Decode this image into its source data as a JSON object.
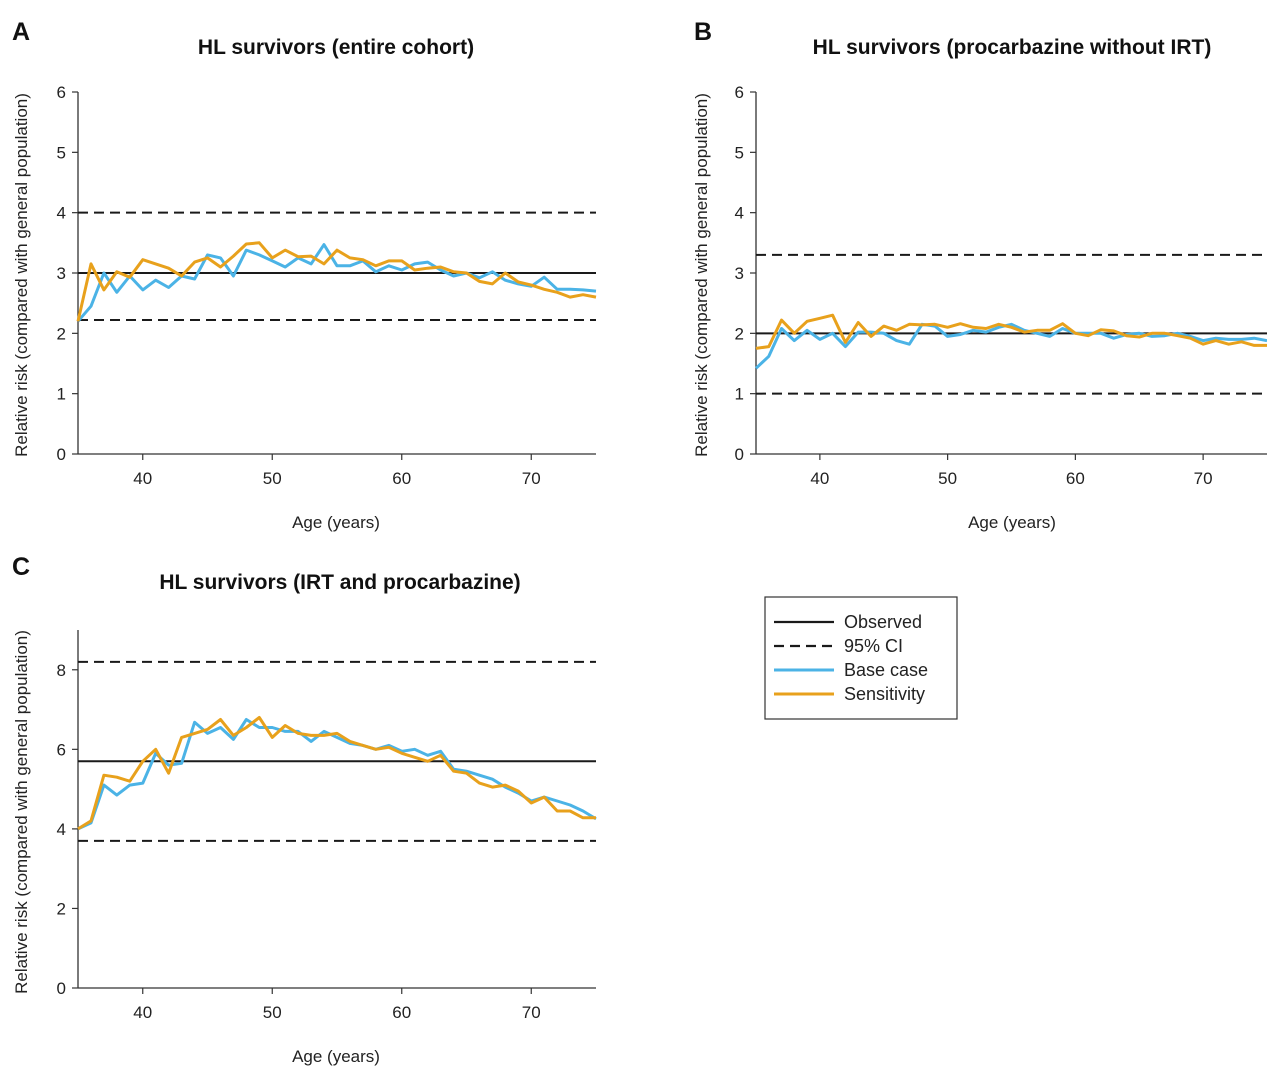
{
  "colors": {
    "observed": "#1a1a1a",
    "ci": "#1a1a1a",
    "base_case": "#4bb3e6",
    "sensitivity": "#e8a11c"
  },
  "legend": {
    "items": [
      {
        "key": "observed",
        "label": "Observed",
        "style": "solid",
        "color": "#1a1a1a"
      },
      {
        "key": "ci",
        "label": "95% CI",
        "style": "dashed",
        "color": "#1a1a1a"
      },
      {
        "key": "base_case",
        "label": "Base case",
        "style": "solid",
        "color": "#4bb3e6"
      },
      {
        "key": "sensitivity",
        "label": "Sensitivity",
        "style": "solid",
        "color": "#e8a11c"
      }
    ]
  },
  "chart_data": [
    {
      "type": "line",
      "panel": "A",
      "title": "HL survivors (entire cohort)",
      "xlabel": "Age (years)",
      "ylabel": "Relative risk (compared with general population)",
      "xlim": [
        35,
        75
      ],
      "ylim": [
        0,
        6
      ],
      "xticks": [
        40,
        50,
        60,
        70
      ],
      "yticks": [
        0,
        1,
        2,
        3,
        4,
        5,
        6
      ],
      "grid": false,
      "observed": 3.0,
      "ci": [
        2.22,
        4.0
      ],
      "x": [
        35,
        36,
        37,
        38,
        39,
        40,
        41,
        42,
        43,
        44,
        45,
        46,
        47,
        48,
        49,
        50,
        51,
        52,
        53,
        54,
        55,
        56,
        57,
        58,
        59,
        60,
        61,
        62,
        63,
        64,
        65,
        66,
        67,
        68,
        69,
        70,
        71,
        72,
        73,
        74,
        75
      ],
      "series": [
        {
          "key": "base_case",
          "values": [
            2.2,
            2.45,
            3.0,
            2.68,
            2.95,
            2.72,
            2.88,
            2.76,
            2.95,
            2.9,
            3.3,
            3.25,
            2.95,
            3.38,
            3.3,
            3.2,
            3.1,
            3.25,
            3.15,
            3.47,
            3.12,
            3.12,
            3.2,
            3.02,
            3.12,
            3.05,
            3.15,
            3.18,
            3.05,
            2.95,
            3.0,
            2.92,
            3.02,
            2.88,
            2.82,
            2.78,
            2.93,
            2.73,
            2.73,
            2.72,
            2.7
          ]
        },
        {
          "key": "sensitivity",
          "values": [
            2.2,
            3.15,
            2.72,
            3.02,
            2.93,
            3.22,
            3.15,
            3.08,
            2.95,
            3.18,
            3.25,
            3.1,
            3.28,
            3.48,
            3.5,
            3.25,
            3.38,
            3.27,
            3.28,
            3.15,
            3.38,
            3.25,
            3.22,
            3.12,
            3.2,
            3.2,
            3.05,
            3.08,
            3.1,
            3.02,
            3.0,
            2.86,
            2.82,
            3.0,
            2.85,
            2.8,
            2.73,
            2.68,
            2.6,
            2.64,
            2.6
          ]
        }
      ]
    },
    {
      "type": "line",
      "panel": "B",
      "title": "HL survivors (procarbazine without IRT)",
      "xlabel": "Age (years)",
      "ylabel": "Relative risk (compared with general population)",
      "xlim": [
        35,
        75
      ],
      "ylim": [
        0,
        6
      ],
      "xticks": [
        40,
        50,
        60,
        70
      ],
      "yticks": [
        0,
        1,
        2,
        3,
        4,
        5,
        6
      ],
      "grid": false,
      "observed": 2.0,
      "ci": [
        1.0,
        3.3
      ],
      "x": [
        35,
        36,
        37,
        38,
        39,
        40,
        41,
        42,
        43,
        44,
        45,
        46,
        47,
        48,
        49,
        50,
        51,
        52,
        53,
        54,
        55,
        56,
        57,
        58,
        59,
        60,
        61,
        62,
        63,
        64,
        65,
        66,
        67,
        68,
        69,
        70,
        71,
        72,
        73,
        74,
        75
      ],
      "series": [
        {
          "key": "base_case",
          "values": [
            1.42,
            1.62,
            2.08,
            1.88,
            2.05,
            1.9,
            2.0,
            1.78,
            2.02,
            2.02,
            2.0,
            1.88,
            1.82,
            2.15,
            2.12,
            1.95,
            1.98,
            2.05,
            2.02,
            2.1,
            2.15,
            2.05,
            2.0,
            1.95,
            2.08,
            2.0,
            2.0,
            2.0,
            1.92,
            1.98,
            2.0,
            1.95,
            1.96,
            2.0,
            1.95,
            1.88,
            1.92,
            1.9,
            1.9,
            1.92,
            1.88
          ]
        },
        {
          "key": "sensitivity",
          "values": [
            1.75,
            1.78,
            2.22,
            2.0,
            2.2,
            2.25,
            2.3,
            1.85,
            2.18,
            1.95,
            2.12,
            2.05,
            2.15,
            2.14,
            2.15,
            2.1,
            2.16,
            2.1,
            2.08,
            2.15,
            2.1,
            2.02,
            2.05,
            2.05,
            2.16,
            2.0,
            1.96,
            2.06,
            2.04,
            1.96,
            1.94,
            2.0,
            2.0,
            1.96,
            1.92,
            1.82,
            1.88,
            1.82,
            1.86,
            1.8,
            1.8
          ]
        }
      ]
    },
    {
      "type": "line",
      "panel": "C",
      "title": "HL survivors (IRT and procarbazine)",
      "xlabel": "Age (years)",
      "ylabel": "Relative risk (compared with general population)",
      "xlim": [
        35,
        75
      ],
      "ylim": [
        0,
        9
      ],
      "xticks": [
        40,
        50,
        60,
        70
      ],
      "yticks": [
        0,
        2,
        4,
        6,
        8
      ],
      "grid": false,
      "observed": 5.7,
      "ci": [
        3.7,
        8.2
      ],
      "x": [
        35,
        36,
        37,
        38,
        39,
        40,
        41,
        42,
        43,
        44,
        45,
        46,
        47,
        48,
        49,
        50,
        51,
        52,
        53,
        54,
        55,
        56,
        57,
        58,
        59,
        60,
        61,
        62,
        63,
        64,
        65,
        66,
        67,
        68,
        69,
        70,
        71,
        72,
        73,
        74,
        75
      ],
      "series": [
        {
          "key": "base_case",
          "values": [
            4.0,
            4.15,
            5.1,
            4.85,
            5.1,
            5.15,
            5.9,
            5.6,
            5.65,
            6.68,
            6.4,
            6.55,
            6.25,
            6.75,
            6.55,
            6.55,
            6.45,
            6.45,
            6.2,
            6.45,
            6.3,
            6.15,
            6.1,
            6.0,
            6.1,
            5.95,
            6.0,
            5.85,
            5.95,
            5.5,
            5.45,
            5.35,
            5.25,
            5.05,
            4.9,
            4.7,
            4.8,
            4.7,
            4.6,
            4.45,
            4.25
          ]
        },
        {
          "key": "sensitivity",
          "values": [
            4.0,
            4.2,
            5.35,
            5.3,
            5.2,
            5.7,
            6.0,
            5.4,
            6.3,
            6.4,
            6.5,
            6.75,
            6.35,
            6.55,
            6.8,
            6.3,
            6.6,
            6.4,
            6.35,
            6.35,
            6.4,
            6.2,
            6.1,
            6.0,
            6.05,
            5.9,
            5.8,
            5.7,
            5.85,
            5.45,
            5.4,
            5.15,
            5.05,
            5.1,
            4.95,
            4.65,
            4.8,
            4.45,
            4.45,
            4.28,
            4.28
          ]
        }
      ]
    }
  ]
}
